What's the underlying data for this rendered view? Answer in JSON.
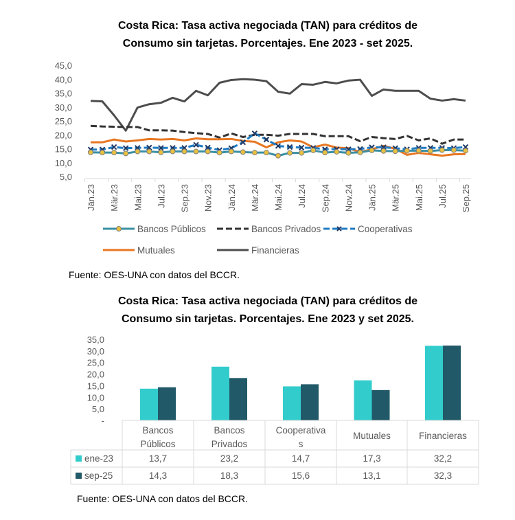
{
  "chart_data": [
    {
      "type": "line",
      "title_line1": "Costa Rica: Tasa activa negociada (TAN) para créditos de",
      "title_line2": "Consumo sin tarjetas. Porcentajes. Ene 2023 - set 2025.",
      "ylim": [
        5,
        45
      ],
      "yticks": [
        "45,0",
        "40,0",
        "35,0",
        "30,0",
        "25,0",
        "20,0",
        "15,0",
        "10,0",
        "5,0"
      ],
      "ytick_values": [
        45,
        40,
        35,
        30,
        25,
        20,
        15,
        10,
        5
      ],
      "xtick_labels": [
        "Jän.23",
        "Mär.23",
        "Mai.23",
        "Jul.23",
        "Sep.23",
        "Nov.23",
        "Jän.24",
        "Mär.24",
        "Mai.24",
        "Jul.24",
        "Sep.24",
        "Nov.24",
        "Jän.25",
        "Mär.25",
        "Mai.25",
        "Jul.25",
        "Sep.25"
      ],
      "n_points": 33,
      "legend_position": "bottom",
      "series": [
        {
          "name": "Bancos Públicos",
          "color": "#3A8FA3",
          "marker": "#E8C140",
          "style": "solid-marker",
          "values": [
            13.7,
            13.6,
            13.6,
            13.3,
            14.0,
            14.0,
            13.7,
            14.0,
            14.0,
            14.0,
            14.0,
            13.6,
            14.0,
            13.8,
            13.6,
            13.6,
            12.5,
            13.5,
            13.5,
            14.4,
            13.6,
            13.9,
            13.5,
            13.7,
            14.4,
            14.2,
            14.1,
            14.3,
            14.3,
            14.2,
            14.5,
            14.5,
            14.3
          ]
        },
        {
          "name": "Bancos Privados",
          "color": "#333333",
          "style": "dashed",
          "values": [
            23.2,
            23.0,
            22.9,
            22.8,
            22.8,
            21.6,
            21.6,
            21.5,
            21.0,
            20.6,
            20.3,
            19.0,
            20.5,
            19.2,
            20.0,
            20.0,
            19.7,
            20.3,
            20.3,
            20.3,
            19.5,
            19.5,
            19.5,
            17.7,
            19.2,
            18.8,
            18.5,
            19.6,
            18.0,
            18.7,
            16.8,
            18.3,
            18.3
          ]
        },
        {
          "name": "Cooperativas",
          "color": "#1F7BC1",
          "marker": "#1F3864",
          "style": "dashed-x",
          "values": [
            14.7,
            14.7,
            15.6,
            15.2,
            15.3,
            15.4,
            15.3,
            15.3,
            15.3,
            16.4,
            15.4,
            14.5,
            15.2,
            17.3,
            20.5,
            18.3,
            16.0,
            15.6,
            15.4,
            15.3,
            14.8,
            14.8,
            14.8,
            14.9,
            15.5,
            15.5,
            15.2,
            14.8,
            15.3,
            15.3,
            15.3,
            15.2,
            15.6
          ]
        },
        {
          "name": "Mutuales",
          "color": "#E87722",
          "style": "solid",
          "values": [
            17.3,
            17.3,
            18.3,
            17.6,
            18.0,
            18.5,
            18.3,
            18.5,
            18.0,
            18.7,
            18.4,
            18.4,
            18.5,
            17.8,
            17.5,
            15.5,
            17.3,
            18.0,
            17.6,
            15.5,
            16.5,
            15.4,
            15.2,
            13.8,
            14.8,
            16.0,
            15.0,
            12.8,
            13.5,
            13.0,
            12.5,
            13.0,
            13.1
          ]
        },
        {
          "name": "Financieras",
          "color": "#4D4D4D",
          "style": "solid",
          "values": [
            32.2,
            32.0,
            27.0,
            21.5,
            29.8,
            31.0,
            31.5,
            33.3,
            32.0,
            35.8,
            34.2,
            38.7,
            39.7,
            40.0,
            39.8,
            39.3,
            35.5,
            34.8,
            38.2,
            38.0,
            39.0,
            38.5,
            39.5,
            39.8,
            34.0,
            36.3,
            35.8,
            35.8,
            35.8,
            33.0,
            32.3,
            32.8,
            32.3
          ]
        }
      ],
      "source": "Fuente: OES-UNA con datos del BCCR."
    },
    {
      "type": "bar",
      "title_line1": "Costa Rica: Tasa activa negociada (TAN) para créditos de",
      "title_line2": "Consumo sin tarjetas. Porcentajes. Ene 2023 y set 2025.",
      "ylim": [
        0,
        35
      ],
      "yticks": [
        "35,0",
        "30,0",
        "25,0",
        "20,0",
        "15,0",
        "10,0",
        "5,0",
        "-"
      ],
      "ytick_values": [
        35,
        30,
        25,
        20,
        15,
        10,
        5,
        0
      ],
      "categories": [
        [
          "Bancos",
          "Públicos"
        ],
        [
          "Bancos",
          "Privados"
        ],
        [
          "Cooperativa",
          "s"
        ],
        [
          "Mutuales"
        ],
        [
          "Financieras"
        ]
      ],
      "series": [
        {
          "name": "ene-23",
          "color": "#33CCCC",
          "values": [
            13.7,
            23.2,
            14.7,
            17.3,
            32.2
          ],
          "labels": [
            "13,7",
            "23,2",
            "14,7",
            "17,3",
            "32,2"
          ]
        },
        {
          "name": "sep-25",
          "color": "#215968",
          "values": [
            14.3,
            18.3,
            15.6,
            13.1,
            32.3
          ],
          "labels": [
            "14,3",
            "18,3",
            "15,6",
            "13,1",
            "32,3"
          ]
        }
      ],
      "legend_position": "data-table",
      "source": "Fuente: OES-UNA con datos del BCCR."
    }
  ]
}
